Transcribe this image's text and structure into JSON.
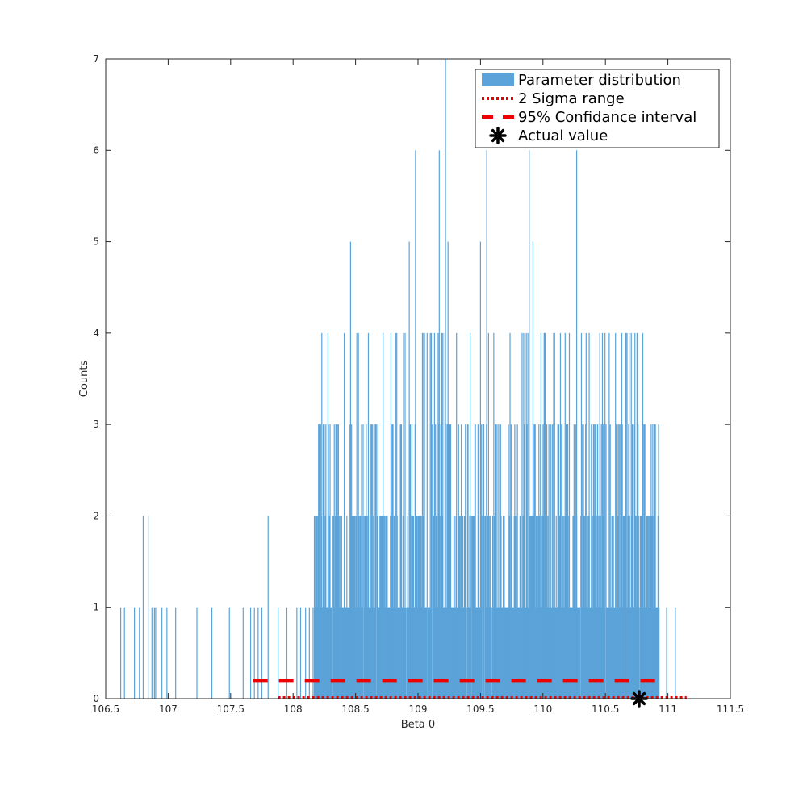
{
  "colors": {
    "bars": "#5ba3d8",
    "reference_lines": "#ee0000",
    "marker": "#000000",
    "axes": "#262626"
  },
  "chart_data": {
    "type": "bar",
    "subtype": "histogram",
    "title": "",
    "xlabel": "Beta 0",
    "ylabel": "Counts",
    "xlim": [
      106.5,
      111.5
    ],
    "ylim": [
      0,
      7
    ],
    "xticks": [
      "106.5",
      "107",
      "107.5",
      "108",
      "108.5",
      "109",
      "109.5",
      "110",
      "110.5",
      "111",
      "111.5"
    ],
    "yticks": [
      "0",
      "1",
      "2",
      "3",
      "4",
      "5",
      "6",
      "7"
    ],
    "grid": false,
    "legend_position": "top-right",
    "legend": [
      {
        "label": "Parameter distribution",
        "style": "bar"
      },
      {
        "label": "2 Sigma range",
        "style": "dotted"
      },
      {
        "label": "95% Confidance interval",
        "style": "dashed"
      },
      {
        "label": "Actual value",
        "style": "asterisk"
      }
    ],
    "series": [
      {
        "name": "Parameter distribution",
        "type": "histogram",
        "sparse_bars": [
          {
            "x": 106.62,
            "count": 1
          },
          {
            "x": 106.65,
            "count": 1
          },
          {
            "x": 106.73,
            "count": 1
          },
          {
            "x": 106.77,
            "count": 1
          },
          {
            "x": 106.8,
            "count": 2
          },
          {
            "x": 106.84,
            "count": 2
          },
          {
            "x": 106.87,
            "count": 1
          },
          {
            "x": 106.89,
            "count": 1
          },
          {
            "x": 106.9,
            "count": 1
          },
          {
            "x": 106.95,
            "count": 1
          },
          {
            "x": 106.99,
            "count": 1
          },
          {
            "x": 107.06,
            "count": 1
          },
          {
            "x": 107.23,
            "count": 1
          },
          {
            "x": 107.35,
            "count": 1
          },
          {
            "x": 107.49,
            "count": 1
          },
          {
            "x": 107.6,
            "count": 1
          },
          {
            "x": 107.66,
            "count": 1
          },
          {
            "x": 107.69,
            "count": 1
          },
          {
            "x": 107.72,
            "count": 1
          },
          {
            "x": 107.75,
            "count": 1
          },
          {
            "x": 107.8,
            "count": 2
          },
          {
            "x": 107.88,
            "count": 1
          },
          {
            "x": 107.95,
            "count": 1
          },
          {
            "x": 108.03,
            "count": 1
          },
          {
            "x": 108.06,
            "count": 1
          },
          {
            "x": 108.1,
            "count": 1
          },
          {
            "x": 108.13,
            "count": 1
          },
          {
            "x": 108.16,
            "count": 1
          },
          {
            "x": 108.2,
            "count": 2
          },
          {
            "x": 108.23,
            "count": 4
          },
          {
            "x": 108.46,
            "count": 5
          },
          {
            "x": 108.83,
            "count": 4
          },
          {
            "x": 108.93,
            "count": 5
          },
          {
            "x": 108.98,
            "count": 6
          },
          {
            "x": 109.17,
            "count": 6
          },
          {
            "x": 109.22,
            "count": 7
          },
          {
            "x": 109.24,
            "count": 5
          },
          {
            "x": 109.5,
            "count": 5
          },
          {
            "x": 109.55,
            "count": 6
          },
          {
            "x": 109.89,
            "count": 6
          },
          {
            "x": 109.92,
            "count": 5
          },
          {
            "x": 110.27,
            "count": 6
          },
          {
            "x": 110.37,
            "count": 4
          },
          {
            "x": 110.62,
            "count": 3
          },
          {
            "x": 110.8,
            "count": 2
          },
          {
            "x": 110.87,
            "count": 2
          },
          {
            "x": 110.92,
            "count": 1
          },
          {
            "x": 110.99,
            "count": 1
          },
          {
            "x": 111.06,
            "count": 1
          }
        ],
        "dense_region": [
          108.17,
          110.93
        ],
        "dense_profile": [
          {
            "x": 108.2,
            "max": 4
          },
          {
            "x": 108.5,
            "max": 3
          },
          {
            "x": 108.8,
            "max": 4
          },
          {
            "x": 109.0,
            "max": 5
          },
          {
            "x": 109.3,
            "max": 4
          },
          {
            "x": 109.6,
            "max": 4
          },
          {
            "x": 109.9,
            "max": 5
          },
          {
            "x": 110.2,
            "max": 4
          },
          {
            "x": 110.5,
            "max": 4
          },
          {
            "x": 110.8,
            "max": 3
          },
          {
            "x": 110.93,
            "max": 2
          }
        ]
      },
      {
        "name": "2 Sigma range",
        "type": "line",
        "style": "dotted",
        "x": [
          107.88,
          111.15
        ],
        "y": [
          0,
          0
        ]
      },
      {
        "name": "95% Confidance interval",
        "type": "line",
        "style": "dashed",
        "x": [
          107.68,
          110.9
        ],
        "y": [
          0.2,
          0.2
        ]
      },
      {
        "name": "Actual value",
        "type": "scatter",
        "marker": "asterisk",
        "x": [
          110.77
        ],
        "y": [
          0
        ]
      }
    ]
  }
}
